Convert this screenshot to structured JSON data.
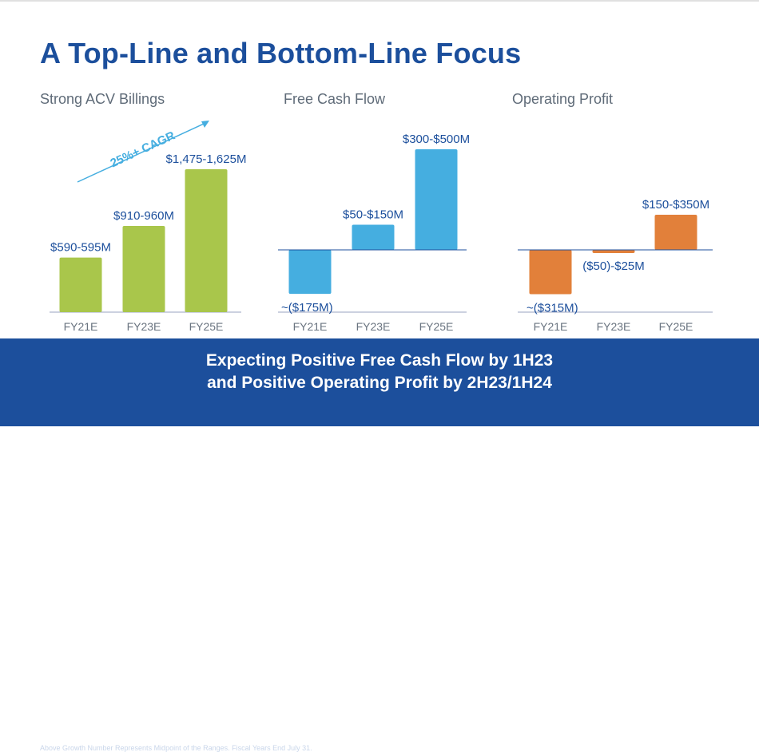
{
  "slide": {
    "title": "A Top-Line and Bottom-Line Focus",
    "banner_line1": "Expecting Positive Free Cash Flow by 1H23",
    "banner_line2": "and Positive Operating Profit by 2H23/1H24",
    "footnote": "Above Growth Number Represents Midpoint of the Ranges. Fiscal Years End July 31."
  },
  "colors": {
    "title": "#1c4f9c",
    "acv_bar": "#a9c64b",
    "fcf_bar": "#45aee0",
    "op_bar": "#e2803a",
    "banner": "#1c4f9c"
  },
  "chart_data": [
    {
      "type": "bar",
      "title": "Strong ACV Billings",
      "categories": [
        "FY21E",
        "FY23E",
        "FY25E"
      ],
      "values": [
        592.5,
        935,
        1550
      ],
      "labels": [
        "$590-595M",
        "$910-960M",
        "$1,475-1,625M"
      ],
      "annotation": "25%+ CAGR",
      "ylim": [
        0,
        1800
      ]
    },
    {
      "type": "bar",
      "title": "Free Cash Flow",
      "categories": [
        "FY21E",
        "FY23E",
        "FY25E"
      ],
      "values": [
        -175,
        100,
        400
      ],
      "labels": [
        "~($175M)",
        "$50-$150M",
        "$300-$500M"
      ],
      "ylim": [
        -300,
        500
      ]
    },
    {
      "type": "bar",
      "title": "Operating Profit",
      "categories": [
        "FY21E",
        "FY23E",
        "FY25E"
      ],
      "values": [
        -315,
        -12.5,
        250
      ],
      "labels": [
        "~($315M)",
        "($50)-$25M",
        "$150-$350M"
      ],
      "ylim": [
        -420,
        900
      ]
    }
  ]
}
